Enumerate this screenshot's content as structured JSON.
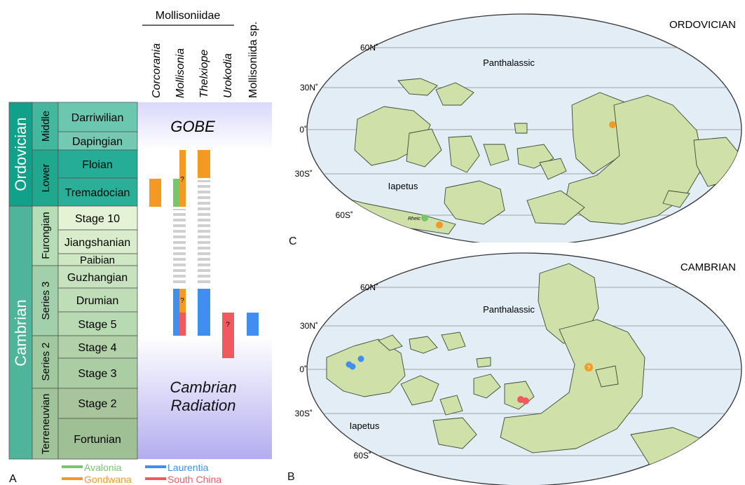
{
  "panel_labels": {
    "a": "A",
    "b": "B",
    "c": "C"
  },
  "family_title": "Mollisoniidae",
  "taxa": [
    "Corcorania",
    "Mollisonia",
    "Thelxiope",
    "Urokodia",
    "Mollisoniida sp."
  ],
  "systems": [
    "Ordovician",
    "Cambrian"
  ],
  "series": [
    "Middle",
    "Lower",
    "Furongian",
    "Series 3",
    "Series 2",
    "Terreneuvian"
  ],
  "stages": [
    "Darriwilian",
    "Dapingian",
    "Floian",
    "Tremadocian",
    "Stage 10",
    "Jiangshanian",
    "Paibian",
    "Guzhangian",
    "Drumian",
    "Stage 5",
    "Stage 4",
    "Stage 3",
    "Stage 2",
    "Fortunian"
  ],
  "events": {
    "gobe": "GOBE",
    "radiation": "Cambrian Radiation"
  },
  "question_mark": "?",
  "legend": [
    {
      "name": "Avalonia",
      "color": "#77c66e"
    },
    {
      "name": "Laurentia",
      "color": "#3f8ef0"
    },
    {
      "name": "Gondwana",
      "color": "#f39a24"
    },
    {
      "name": "South China",
      "color": "#f05a5f"
    }
  ],
  "colors": {
    "ordovician": "#11a08a",
    "cambrian": "#4fb59a",
    "event_band": "#e3e3fb",
    "land": "#cfe0a8",
    "ocean": "#e2edf6"
  },
  "map_c": {
    "title": "ORDOVICIAN",
    "latitudes": [
      "60N˚",
      "30N˚",
      "0˚",
      "30S˚",
      "60S˚"
    ],
    "oceans": {
      "panthalassic": "Panthalassic",
      "iapetus": "Iapetus",
      "rheic": "Rheic"
    }
  },
  "map_b": {
    "title": "CAMBRIAN",
    "latitudes": [
      "60N˚",
      "30N˚",
      "0˚",
      "30S˚",
      "60S˚"
    ],
    "oceans": {
      "panthalassic": "Panthalassic",
      "iapetus": "Iapetus"
    }
  }
}
